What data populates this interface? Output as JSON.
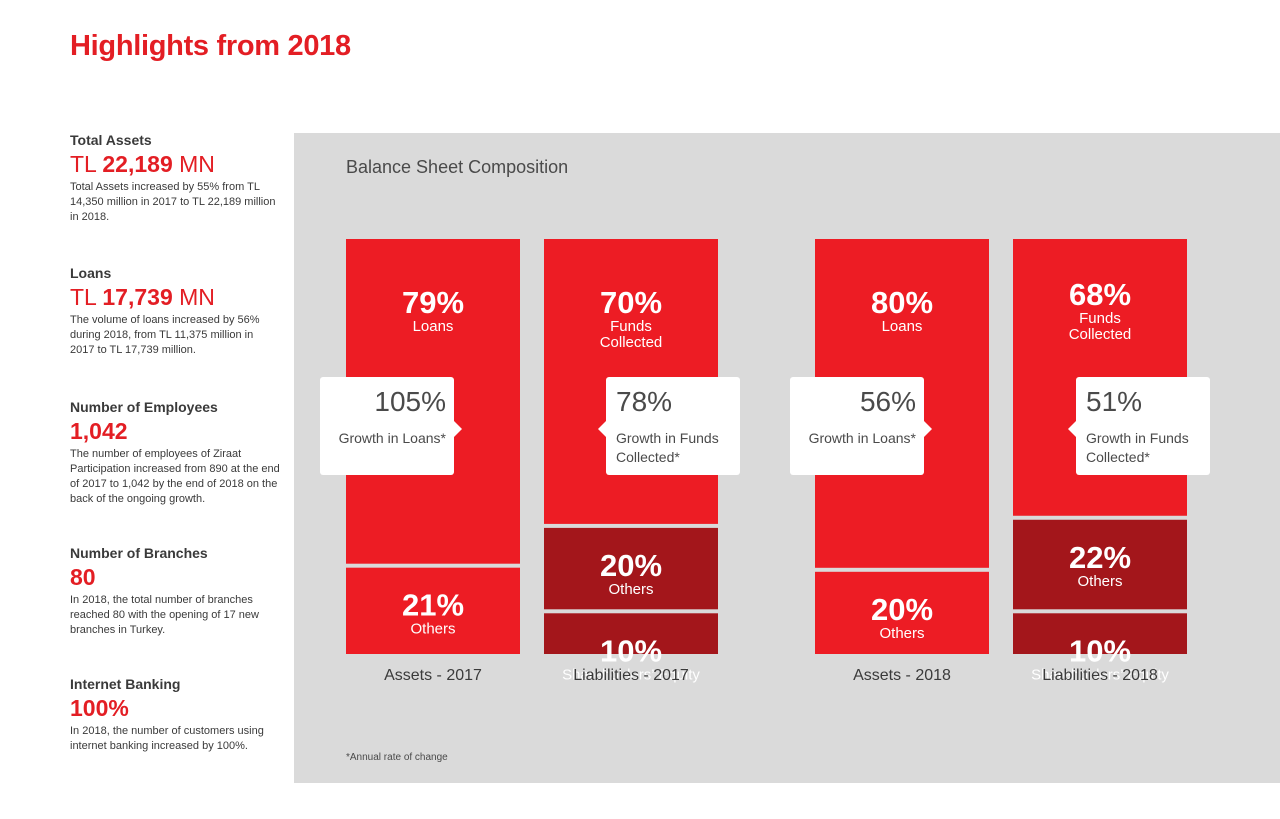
{
  "page": {
    "title": "Highlights from 2018"
  },
  "highlights": [
    {
      "label": "Total Assets",
      "prefix": "TL ",
      "value": "22,189",
      "suffix": " MN",
      "desc": "Total Assets increased by 55% from TL 14,350 million in 2017 to TL 22,189 million in 2018."
    },
    {
      "label": "Loans",
      "prefix": "TL ",
      "value": "17,739",
      "suffix": " MN",
      "desc": "The volume of loans increased by 56% during 2018, from TL 11,375 million in 2017 to TL 17,739 million."
    },
    {
      "label": "Number of Employees",
      "prefix": "",
      "value": "1,042",
      "suffix": "",
      "desc": "The number of employees of Ziraat Participation increased from 890 at the end of 2017 to 1,042 by the end of 2018 on the back of the ongoing growth."
    },
    {
      "label": "Number of Branches",
      "prefix": "",
      "value": "80",
      "suffix": "",
      "desc": "In 2018, the total number of branches reached 80 with the opening of 17 new branches in Turkey."
    },
    {
      "label": "Internet Banking",
      "prefix": "",
      "value": "100%",
      "suffix": "",
      "desc": "In 2018, the number of customers using internet banking increased by 100%."
    }
  ],
  "colors": {
    "brand_red": "#ed1c24",
    "dark_red": "#a3161b",
    "panel_bg": "#dadada"
  },
  "chart_data": {
    "type": "bar",
    "stacked": true,
    "percent_stacked": true,
    "title": "Balance Sheet Composition",
    "categories": [
      "Assets  - 2017",
      "Liabilities  - 2017",
      "Assets  - 2018",
      "Liabilities  - 2018"
    ],
    "columns": [
      {
        "category": "Assets  - 2017",
        "segments": [
          {
            "label": "Loans",
            "value": 79,
            "color": "#ed1c24"
          },
          {
            "label": "Others",
            "value": 21,
            "color": "#ed1c24"
          }
        ]
      },
      {
        "category": "Liabilities  - 2017",
        "segments": [
          {
            "label": "Funds Collected",
            "value": 70,
            "color": "#ed1c24"
          },
          {
            "label": "Others",
            "value": 20,
            "color": "#a3161b"
          },
          {
            "label": "Shareholders’ Equity",
            "value": 10,
            "color": "#a3161b"
          }
        ]
      },
      {
        "category": "Assets  - 2018",
        "segments": [
          {
            "label": "Loans",
            "value": 80,
            "color": "#ed1c24"
          },
          {
            "label": "Others",
            "value": 20,
            "color": "#ed1c24"
          }
        ]
      },
      {
        "category": "Liabilities  - 2018",
        "segments": [
          {
            "label": "Funds Collected",
            "value": 68,
            "color": "#ed1c24"
          },
          {
            "label": "Others",
            "value": 22,
            "color": "#a3161b"
          },
          {
            "label": "Shareholders’ Equity",
            "value": 10,
            "color": "#a3161b"
          }
        ]
      }
    ],
    "callouts": [
      {
        "column": 0,
        "value": "105%",
        "text": "Growth in Loans*"
      },
      {
        "column": 1,
        "value": "78%",
        "text": "Growth in Funds Collected*"
      },
      {
        "column": 2,
        "value": "56%",
        "text": "Growth in Loans*"
      },
      {
        "column": 3,
        "value": "51%",
        "text": "Growth in Funds Collected*"
      }
    ],
    "footnote": "*Annual rate of change"
  }
}
